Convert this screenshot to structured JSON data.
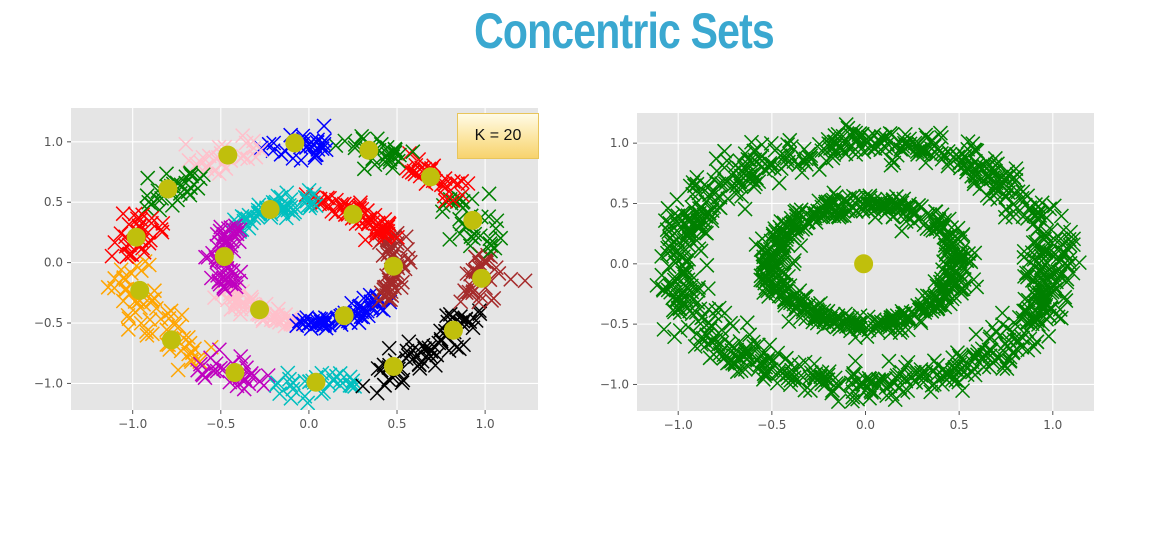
{
  "title": "Concentric Sets",
  "title_color": "#3aa8d0",
  "annotation": "K = 20",
  "chart_data": [
    {
      "type": "scatter",
      "name": "left",
      "xlim": [
        -1.35,
        1.3
      ],
      "ylim": [
        -1.22,
        1.28
      ],
      "xticks": [
        -1.0,
        -0.5,
        0.0,
        0.5,
        1.0
      ],
      "yticks": [
        -1.0,
        -0.5,
        0.0,
        0.5,
        1.0
      ],
      "xtick_labels": [
        "−1.0",
        "−0.5",
        "0.0",
        "0.5",
        "1.0"
      ],
      "ytick_labels": [
        "−1.0",
        "−0.5",
        "0.0",
        "0.5",
        "1.0"
      ],
      "grid": true,
      "background": "#e5e5e5",
      "marker_data": "x",
      "centroid_color": "#c0bf0c",
      "rings": [
        {
          "radius_x": 1.0,
          "radius_y": 1.0
        },
        {
          "radius_x": 0.5,
          "radius_y": 0.5
        }
      ],
      "clusters": [
        {
          "color": "#0000ff",
          "centroid": [
            -0.08,
            0.99
          ],
          "ring": 0
        },
        {
          "color": "#008000",
          "centroid": [
            0.34,
            0.93
          ],
          "ring": 0
        },
        {
          "color": "#ff0000",
          "centroid": [
            0.69,
            0.71
          ],
          "ring": 0
        },
        {
          "color": "#008000",
          "centroid": [
            0.93,
            0.35
          ],
          "ring": 0
        },
        {
          "color": "#a52a2a",
          "centroid": [
            0.98,
            -0.13
          ],
          "ring": 0
        },
        {
          "color": "#000000",
          "centroid": [
            0.82,
            -0.56
          ],
          "ring": 0
        },
        {
          "color": "#000000",
          "centroid": [
            0.48,
            -0.86
          ],
          "ring": 0
        },
        {
          "color": "#00bfbf",
          "centroid": [
            0.04,
            -0.99
          ],
          "ring": 0
        },
        {
          "color": "#bf00bf",
          "centroid": [
            -0.42,
            -0.91
          ],
          "ring": 0
        },
        {
          "color": "#ffa500",
          "centroid": [
            -0.78,
            -0.64
          ],
          "ring": 0
        },
        {
          "color": "#ffa500",
          "centroid": [
            -0.96,
            -0.23
          ],
          "ring": 0
        },
        {
          "color": "#ff0000",
          "centroid": [
            -0.98,
            0.21
          ],
          "ring": 0
        },
        {
          "color": "#008000",
          "centroid": [
            -0.8,
            0.61
          ],
          "ring": 0
        },
        {
          "color": "#ffc0cb",
          "centroid": [
            -0.46,
            0.89
          ],
          "ring": 0
        },
        {
          "color": "#00bfbf",
          "centroid": [
            -0.22,
            0.44
          ],
          "ring": 1
        },
        {
          "color": "#ff0000",
          "centroid": [
            0.25,
            0.4
          ],
          "ring": 1
        },
        {
          "color": "#a52a2a",
          "centroid": [
            0.48,
            -0.03
          ],
          "ring": 1
        },
        {
          "color": "#0000ff",
          "centroid": [
            0.2,
            -0.44
          ],
          "ring": 1
        },
        {
          "color": "#ffc0cb",
          "centroid": [
            -0.28,
            -0.39
          ],
          "ring": 1
        },
        {
          "color": "#bf00bf",
          "centroid": [
            -0.48,
            0.05
          ],
          "ring": 1
        }
      ]
    },
    {
      "type": "scatter",
      "name": "right",
      "xlim": [
        -1.22,
        1.22
      ],
      "ylim": [
        -1.22,
        1.25
      ],
      "xticks": [
        -1.0,
        -0.5,
        0.0,
        0.5,
        1.0
      ],
      "yticks": [
        -1.0,
        -0.5,
        0.0,
        0.5,
        1.0
      ],
      "xtick_labels": [
        "−1.0",
        "−0.5",
        "0.0",
        "0.5",
        "1.0"
      ],
      "ytick_labels": [
        "−1.0",
        "−0.5",
        "0.0",
        "0.5",
        "1.0"
      ],
      "grid": true,
      "background": "#e5e5e5",
      "marker_data": "x",
      "data_color": "#008000",
      "centroid_color": "#c0bf0c",
      "rings": [
        {
          "radius_x": 1.0,
          "radius_y": 1.0
        },
        {
          "radius_x": 0.5,
          "radius_y": 0.5
        }
      ],
      "centroids": [
        [
          -0.01,
          0.0
        ]
      ]
    }
  ]
}
